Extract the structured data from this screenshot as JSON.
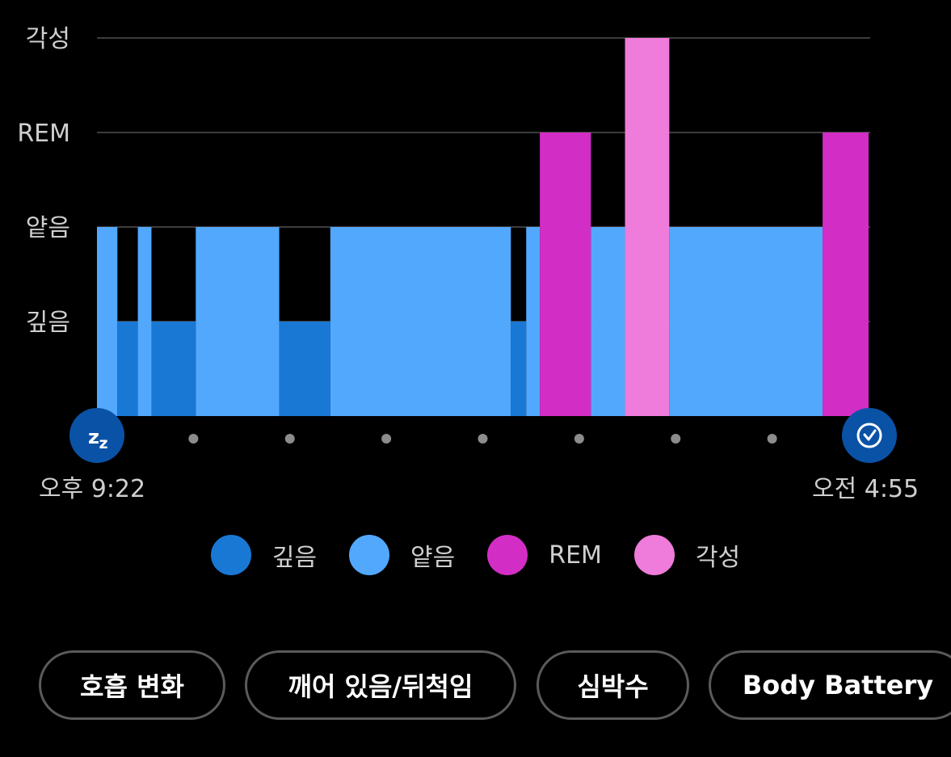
{
  "chart_data": {
    "type": "bar",
    "title": "",
    "xlabel": "",
    "ylabel": "",
    "y_categories": [
      "깊음",
      "얕음",
      "REM",
      "각성"
    ],
    "grid": true,
    "start_time": "오후 9:22",
    "end_time": "오전 4:55",
    "segments": [
      {
        "stage": "얕음",
        "start": "21:22",
        "end": "21:34"
      },
      {
        "stage": "깊음",
        "start": "21:34",
        "end": "21:46"
      },
      {
        "stage": "얕음",
        "start": "21:46",
        "end": "21:54"
      },
      {
        "stage": "깊음",
        "start": "21:54",
        "end": "22:20"
      },
      {
        "stage": "얕음",
        "start": "22:20",
        "end": "23:09"
      },
      {
        "stage": "깊음",
        "start": "23:09",
        "end": "23:39"
      },
      {
        "stage": "얕음",
        "start": "23:39",
        "end": "01:25"
      },
      {
        "stage": "깊음",
        "start": "01:25",
        "end": "01:34"
      },
      {
        "stage": "얕음",
        "start": "01:34",
        "end": "01:42"
      },
      {
        "stage": "REM",
        "start": "01:42",
        "end": "02:12"
      },
      {
        "stage": "얕음",
        "start": "02:12",
        "end": "02:32"
      },
      {
        "stage": "각성",
        "start": "02:32",
        "end": "02:58"
      },
      {
        "stage": "얕음",
        "start": "02:58",
        "end": "04:28"
      },
      {
        "stage": "REM",
        "start": "04:28",
        "end": "04:55"
      }
    ],
    "legend": [
      {
        "label": "깊음",
        "color": "#1a78d5"
      },
      {
        "label": "얕음",
        "color": "#52a8fc"
      },
      {
        "label": "REM",
        "color": "#d22ec6"
      },
      {
        "label": "각성",
        "color": "#ef7bda"
      }
    ],
    "colors": {
      "깊음": "#1a78d5",
      "얕음": "#52a8fc",
      "REM": "#d22ec6",
      "각성": "#ef7bda"
    }
  },
  "icons": {
    "start": "sleep-zz-icon",
    "end": "alarm-clock-icon",
    "marker_color": "#0a52a6"
  },
  "buttons": [
    "호흡 변화",
    "깨어 있음/뒤척임",
    "심박수",
    "Body Battery"
  ]
}
